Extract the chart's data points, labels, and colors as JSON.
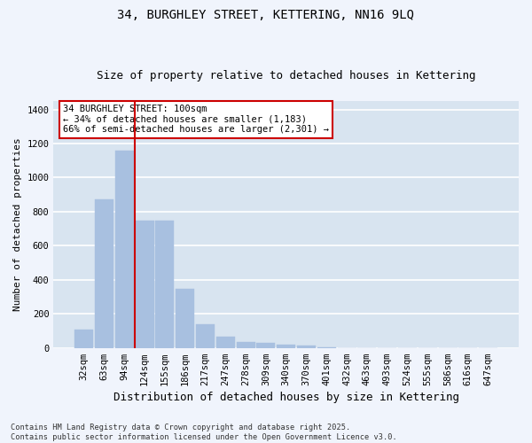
{
  "title": "34, BURGHLEY STREET, KETTERING, NN16 9LQ",
  "subtitle": "Size of property relative to detached houses in Kettering",
  "xlabel": "Distribution of detached houses by size in Kettering",
  "ylabel": "Number of detached properties",
  "fig_background_color": "#f0f4fc",
  "ax_background_color": "#d8e4f0",
  "bar_color": "#a8c0e0",
  "bar_edgecolor": "#a8c0e0",
  "grid_color": "#ffffff",
  "categories": [
    "32sqm",
    "63sqm",
    "94sqm",
    "124sqm",
    "155sqm",
    "186sqm",
    "217sqm",
    "247sqm",
    "278sqm",
    "309sqm",
    "340sqm",
    "370sqm",
    "401sqm",
    "432sqm",
    "463sqm",
    "493sqm",
    "524sqm",
    "555sqm",
    "586sqm",
    "616sqm",
    "647sqm"
  ],
  "values": [
    110,
    870,
    1160,
    750,
    750,
    345,
    140,
    65,
    35,
    30,
    18,
    15,
    5,
    0,
    0,
    0,
    0,
    0,
    0,
    0,
    0
  ],
  "ylim": [
    0,
    1450
  ],
  "yticks": [
    0,
    200,
    400,
    600,
    800,
    1000,
    1200,
    1400
  ],
  "vline_x": 2.5,
  "vline_color": "#cc0000",
  "annotation_title": "34 BURGHLEY STREET: 100sqm",
  "annotation_line1": "← 34% of detached houses are smaller (1,183)",
  "annotation_line2": "66% of semi-detached houses are larger (2,301) →",
  "annotation_box_edgecolor": "#cc0000",
  "footnote1": "Contains HM Land Registry data © Crown copyright and database right 2025.",
  "footnote2": "Contains public sector information licensed under the Open Government Licence v3.0.",
  "title_fontsize": 10,
  "subtitle_fontsize": 9,
  "tick_fontsize": 7.5,
  "ylabel_fontsize": 8,
  "xlabel_fontsize": 9
}
